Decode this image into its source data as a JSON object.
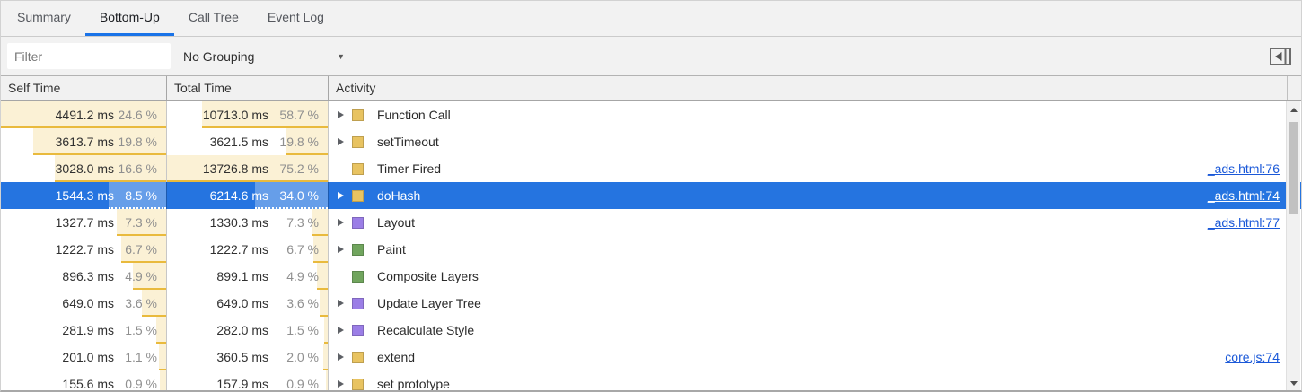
{
  "tabs": [
    {
      "label": "Summary",
      "active": false
    },
    {
      "label": "Bottom-Up",
      "active": true
    },
    {
      "label": "Call Tree",
      "active": false
    },
    {
      "label": "Event Log",
      "active": false
    }
  ],
  "toolbar": {
    "filter_placeholder": "Filter",
    "grouping_selected": "No Grouping",
    "dropdown_icon": "▼"
  },
  "columns": {
    "self": "Self Time",
    "total": "Total Time",
    "activity": "Activity"
  },
  "rows": [
    {
      "self_time": "4491.2 ms",
      "self_pct": "24.6 %",
      "total_time": "10713.0 ms",
      "total_pct": "58.7 %",
      "activity": "Function Call",
      "category": "scripting",
      "expandable": true,
      "link": "",
      "selected": false
    },
    {
      "self_time": "3613.7 ms",
      "self_pct": "19.8 %",
      "total_time": "3621.5 ms",
      "total_pct": "19.8 %",
      "activity": "setTimeout",
      "category": "scripting",
      "expandable": true,
      "link": "",
      "selected": false
    },
    {
      "self_time": "3028.0 ms",
      "self_pct": "16.6 %",
      "total_time": "13726.8 ms",
      "total_pct": "75.2 %",
      "activity": "Timer Fired",
      "category": "scripting",
      "expandable": false,
      "link": "_ads.html:76",
      "selected": false
    },
    {
      "self_time": "1544.3 ms",
      "self_pct": "8.5 %",
      "total_time": "6214.6 ms",
      "total_pct": "34.0 %",
      "activity": "doHash",
      "category": "scripting",
      "expandable": true,
      "link": "_ads.html:74",
      "selected": true
    },
    {
      "self_time": "1327.7 ms",
      "self_pct": "7.3 %",
      "total_time": "1330.3 ms",
      "total_pct": "7.3 %",
      "activity": "Layout",
      "category": "rendering",
      "expandable": true,
      "link": "_ads.html:77",
      "selected": false
    },
    {
      "self_time": "1222.7 ms",
      "self_pct": "6.7 %",
      "total_time": "1222.7 ms",
      "total_pct": "6.7 %",
      "activity": "Paint",
      "category": "painting",
      "expandable": true,
      "link": "",
      "selected": false
    },
    {
      "self_time": "896.3 ms",
      "self_pct": "4.9 %",
      "total_time": "899.1 ms",
      "total_pct": "4.9 %",
      "activity": "Composite Layers",
      "category": "painting",
      "expandable": false,
      "link": "",
      "selected": false
    },
    {
      "self_time": "649.0 ms",
      "self_pct": "3.6 %",
      "total_time": "649.0 ms",
      "total_pct": "3.6 %",
      "activity": "Update Layer Tree",
      "category": "rendering",
      "expandable": true,
      "link": "",
      "selected": false
    },
    {
      "self_time": "281.9 ms",
      "self_pct": "1.5 %",
      "total_time": "282.0 ms",
      "total_pct": "1.5 %",
      "activity": "Recalculate Style",
      "category": "rendering",
      "expandable": true,
      "link": "",
      "selected": false
    },
    {
      "self_time": "201.0 ms",
      "self_pct": "1.1 %",
      "total_time": "360.5 ms",
      "total_pct": "2.0 %",
      "activity": "extend",
      "category": "scripting",
      "expandable": true,
      "link": "core.js:74",
      "selected": false
    },
    {
      "self_time": "155.6 ms",
      "self_pct": "0.9 %",
      "total_time": "157.9 ms",
      "total_pct": "0.9 %",
      "activity": "set prototype",
      "category": "scripting",
      "expandable": true,
      "link": "",
      "selected": false
    }
  ],
  "colors": {
    "accent_blue": "#1a73e8",
    "selection_blue": "#2574e0",
    "bar_fill": "#fbf1d5",
    "bar_edge": "#e9ba3d",
    "link_blue": "#1a58d8",
    "scripting": "#e8c361",
    "rendering": "#9b7ee6",
    "painting": "#71a55e"
  }
}
